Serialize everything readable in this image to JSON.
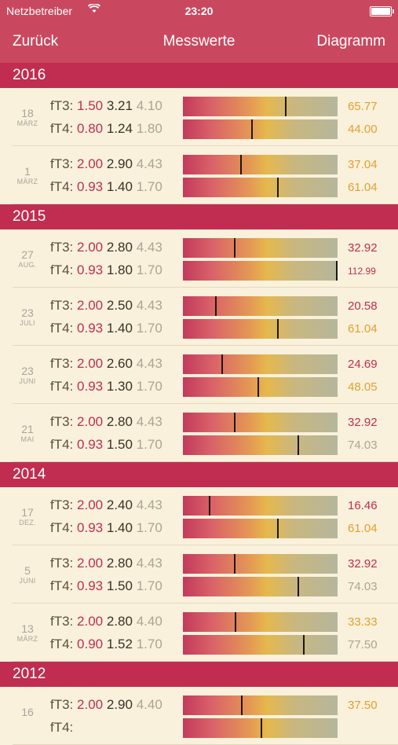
{
  "status_bar": {
    "carrier": "Netzbetreiber",
    "time": "23:20"
  },
  "nav": {
    "back": "Zurück",
    "title": "Messwerte",
    "right": "Diagramm"
  },
  "colors": {
    "header": "#c9485f",
    "year_header": "#c02d50",
    "background": "#f9f1dc",
    "low": "#c02d50",
    "normal": "#e0a030",
    "high": "#a9a592"
  },
  "sections": [
    {
      "year": "2016",
      "entries": [
        {
          "day": "18",
          "month": "MÄRZ",
          "ft3": {
            "label": "fT3:",
            "low": "1.50",
            "value": "3.21",
            "high": "4.10",
            "fraction": 0.658,
            "percent": "65.77",
            "color": "#e0a030"
          },
          "ft4": {
            "label": "fT4:",
            "low": "0.80",
            "value": "1.24",
            "high": "1.80",
            "fraction": 0.44,
            "percent": "44.00",
            "color": "#e0a030"
          }
        },
        {
          "day": "1",
          "month": "MÄRZ",
          "ft3": {
            "label": "fT3:",
            "low": "2.00",
            "value": "2.90",
            "high": "4.43",
            "fraction": 0.37,
            "percent": "37.04",
            "color": "#e0a030"
          },
          "ft4": {
            "label": "fT4:",
            "low": "0.93",
            "value": "1.40",
            "high": "1.70",
            "fraction": 0.61,
            "percent": "61.04",
            "color": "#e0a030"
          }
        }
      ]
    },
    {
      "year": "2015",
      "entries": [
        {
          "day": "27",
          "month": "AUG.",
          "ft3": {
            "label": "fT3:",
            "low": "2.00",
            "value": "2.80",
            "high": "4.43",
            "fraction": 0.329,
            "percent": "32.92",
            "color": "#c02d50"
          },
          "ft4": {
            "label": "fT4:",
            "low": "0.93",
            "value": "1.80",
            "high": "1.70",
            "fraction": 1.0,
            "percent": "112.99",
            "color": "#c02d50",
            "small": true
          }
        },
        {
          "day": "23",
          "month": "JULI",
          "ft3": {
            "label": "fT3:",
            "low": "2.00",
            "value": "2.50",
            "high": "4.43",
            "fraction": 0.206,
            "percent": "20.58",
            "color": "#c02d50"
          },
          "ft4": {
            "label": "fT4:",
            "low": "0.93",
            "value": "1.40",
            "high": "1.70",
            "fraction": 0.61,
            "percent": "61.04",
            "color": "#e0a030"
          }
        },
        {
          "day": "23",
          "month": "JUNI",
          "ft3": {
            "label": "fT3:",
            "low": "2.00",
            "value": "2.60",
            "high": "4.43",
            "fraction": 0.247,
            "percent": "24.69",
            "color": "#c02d50"
          },
          "ft4": {
            "label": "fT4:",
            "low": "0.93",
            "value": "1.30",
            "high": "1.70",
            "fraction": 0.48,
            "percent": "48.05",
            "color": "#e0a030"
          }
        },
        {
          "day": "21",
          "month": "MAI",
          "ft3": {
            "label": "fT3:",
            "low": "2.00",
            "value": "2.80",
            "high": "4.43",
            "fraction": 0.329,
            "percent": "32.92",
            "color": "#c02d50"
          },
          "ft4": {
            "label": "fT4:",
            "low": "0.93",
            "value": "1.50",
            "high": "1.70",
            "fraction": 0.74,
            "percent": "74.03",
            "color": "#a9a592"
          }
        }
      ]
    },
    {
      "year": "2014",
      "entries": [
        {
          "day": "17",
          "month": "DEZ.",
          "ft3": {
            "label": "fT3:",
            "low": "2.00",
            "value": "2.40",
            "high": "4.43",
            "fraction": 0.165,
            "percent": "16.46",
            "color": "#c02d50"
          },
          "ft4": {
            "label": "fT4:",
            "low": "0.93",
            "value": "1.40",
            "high": "1.70",
            "fraction": 0.61,
            "percent": "61.04",
            "color": "#e0a030"
          }
        },
        {
          "day": "5",
          "month": "JUNI",
          "ft3": {
            "label": "fT3:",
            "low": "2.00",
            "value": "2.80",
            "high": "4.43",
            "fraction": 0.329,
            "percent": "32.92",
            "color": "#c02d50"
          },
          "ft4": {
            "label": "fT4:",
            "low": "0.93",
            "value": "1.50",
            "high": "1.70",
            "fraction": 0.74,
            "percent": "74.03",
            "color": "#a9a592"
          }
        },
        {
          "day": "13",
          "month": "MÄRZ",
          "ft3": {
            "label": "fT3:",
            "low": "2.00",
            "value": "2.80",
            "high": "4.40",
            "fraction": 0.333,
            "percent": "33.33",
            "color": "#e0a030"
          },
          "ft4": {
            "label": "fT4:",
            "low": "0.90",
            "value": "1.52",
            "high": "1.70",
            "fraction": 0.775,
            "percent": "77.50",
            "color": "#a9a592"
          }
        }
      ]
    },
    {
      "year": "2012",
      "entries": [
        {
          "day": "16",
          "month": "",
          "ft3": {
            "label": "fT3:",
            "low": "2.00",
            "value": "2.90",
            "high": "4.40",
            "fraction": 0.375,
            "percent": "37.50",
            "color": "#e0a030"
          },
          "ft4": {
            "label": "fT4:",
            "low": "",
            "value": "",
            "high": "",
            "fraction": 0.5,
            "percent": "",
            "color": "#e0a030"
          }
        }
      ]
    }
  ]
}
